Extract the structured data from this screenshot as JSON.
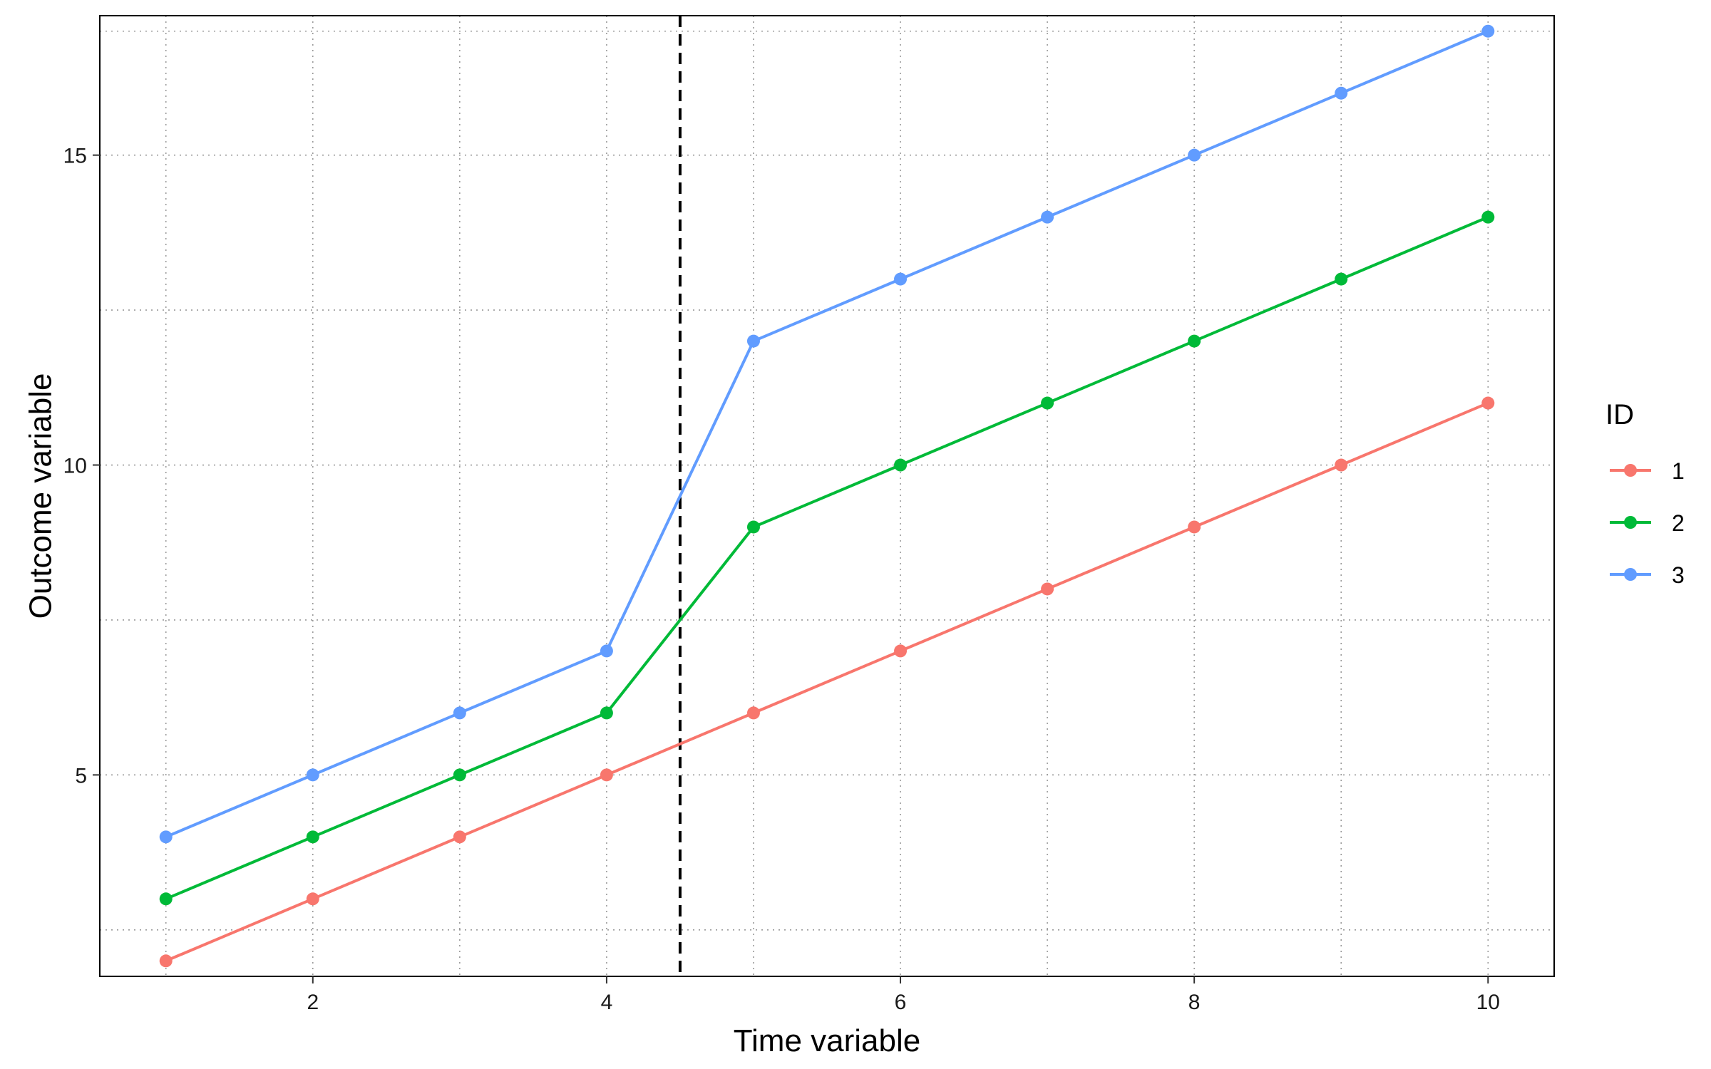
{
  "chart_data": {
    "type": "line",
    "title": "",
    "xlabel": "Time variable",
    "ylabel": "Outcome variable",
    "x": [
      1,
      2,
      3,
      4,
      5,
      6,
      7,
      8,
      9,
      10
    ],
    "xlim": [
      0.55,
      10.45
    ],
    "ylim": [
      1.75,
      17.25
    ],
    "x_ticks": [
      2,
      4,
      6,
      8,
      10
    ],
    "y_ticks": [
      5,
      10,
      15
    ],
    "x_minor_grid": [
      1,
      3,
      5,
      7,
      9
    ],
    "y_minor_grid": [
      2.5,
      7.5,
      12.5,
      17
    ],
    "grid": "dotted",
    "vline": {
      "x": 4.5,
      "style": "dashed",
      "color": "#000000"
    },
    "legend": {
      "title": "ID",
      "position": "right"
    },
    "series": [
      {
        "name": "1",
        "color": "#F8766D",
        "values": [
          2,
          3,
          4,
          5,
          6,
          7,
          8,
          9,
          10,
          11
        ]
      },
      {
        "name": "2",
        "color": "#00BA38",
        "values": [
          3,
          4,
          5,
          6,
          9,
          10,
          11,
          12,
          13,
          14
        ]
      },
      {
        "name": "3",
        "color": "#619CFF",
        "values": [
          4,
          5,
          6,
          7,
          12,
          13,
          14,
          15,
          16,
          17
        ]
      }
    ]
  }
}
